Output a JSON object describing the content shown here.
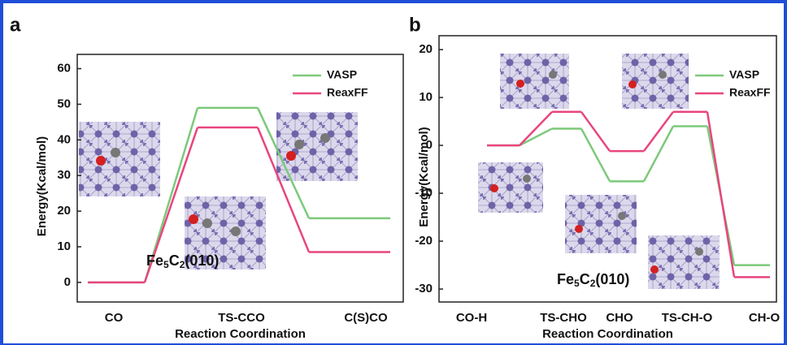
{
  "chart_data": [
    {
      "type": "energy-profile",
      "panel_label": "a",
      "categories": [
        "CO",
        "TS-CCO",
        "C(S)CO"
      ],
      "series": [
        {
          "name": "VASP",
          "color": "#7cc97a",
          "values": [
            0,
            49,
            18
          ]
        },
        {
          "name": "ReaxFF",
          "color": "#e8457f",
          "values": [
            0,
            43.5,
            8.5
          ]
        }
      ],
      "ylim": [
        -5.5,
        64
      ],
      "yticks": [
        0,
        10,
        20,
        30,
        40,
        50,
        60
      ],
      "ylabel": "Energy(Kcal/mol)",
      "xlabel": "Reaction Coordination",
      "legend": "upper right",
      "annotation": [
        {
          "text": "Fe"
        },
        {
          "text": "5",
          "sub": true
        },
        {
          "text": "C"
        },
        {
          "text": "2",
          "sub": true
        },
        {
          "text": "(010)"
        }
      ]
    },
    {
      "type": "energy-profile",
      "panel_label": "b",
      "categories": [
        "CO-H",
        "TS-CHO",
        "CHO",
        "TS-CH-O",
        "CH-O"
      ],
      "series": [
        {
          "name": "VASP",
          "color": "#7cc97a",
          "values": [
            0,
            3.5,
            -7.5,
            4,
            -25
          ]
        },
        {
          "name": "ReaxFF",
          "color": "#e8457f",
          "values": [
            0,
            7,
            -1.2,
            7,
            -27.5
          ]
        }
      ],
      "ylim": [
        -32.7,
        22.9
      ],
      "yticks": [
        -30,
        -20,
        -10,
        0,
        10,
        20
      ],
      "ylabel": "Energy(Kcal/mol)",
      "xlabel": "Reaction Coordination",
      "legend": "upper right",
      "annotation": [
        {
          "text": "Fe"
        },
        {
          "text": "5",
          "sub": true
        },
        {
          "text": "C"
        },
        {
          "text": "2",
          "sub": true
        },
        {
          "text": "(010)"
        }
      ]
    }
  ]
}
